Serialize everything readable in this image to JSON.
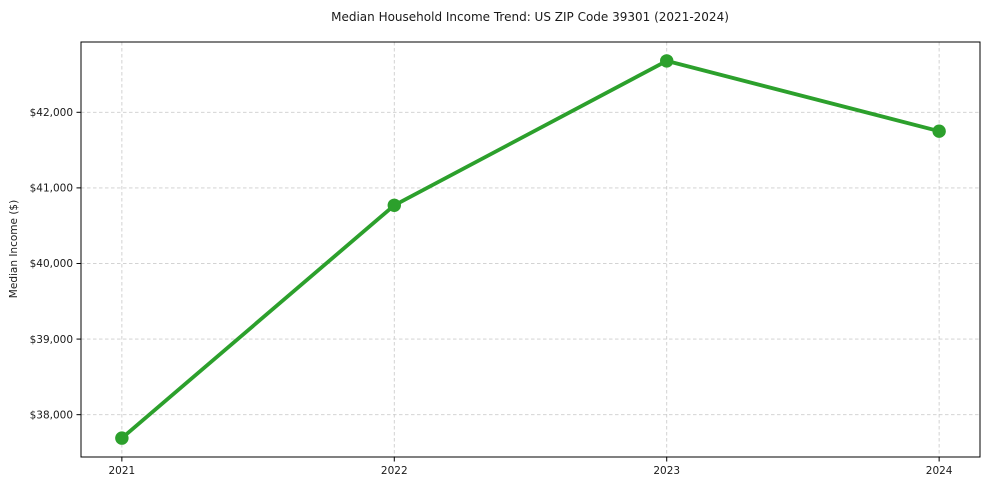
{
  "chart_data": {
    "type": "line",
    "title": "Median Household Income Trend: US ZIP Code 39301 (2021-2024)",
    "xlabel": "",
    "ylabel": "Median Income ($)",
    "categories": [
      "2021",
      "2022",
      "2023",
      "2024"
    ],
    "series": [
      {
        "name": "Median Household Income",
        "values": [
          37690,
          40770,
          42680,
          41750
        ],
        "color": "#2ca02c"
      }
    ],
    "y_ticks": [
      {
        "value": 38000,
        "label": "$38,000"
      },
      {
        "value": 39000,
        "label": "$39,000"
      },
      {
        "value": 40000,
        "label": "$40,000"
      },
      {
        "value": 41000,
        "label": "$41,000"
      },
      {
        "value": 42000,
        "label": "$42,000"
      }
    ],
    "ylim": [
      37440,
      42930
    ],
    "xlim": [
      -0.15,
      3.15
    ],
    "grid": {
      "visible": true,
      "style": "dashed",
      "color": "#cdcdcd"
    },
    "legend": {
      "visible": false
    },
    "line_width": 3.8,
    "marker": {
      "shape": "circle",
      "radius": 6.7
    },
    "colors": {
      "line": "#2ca02c",
      "axis": "#000000",
      "text": "#1a1a1a",
      "background": "#ffffff"
    }
  }
}
